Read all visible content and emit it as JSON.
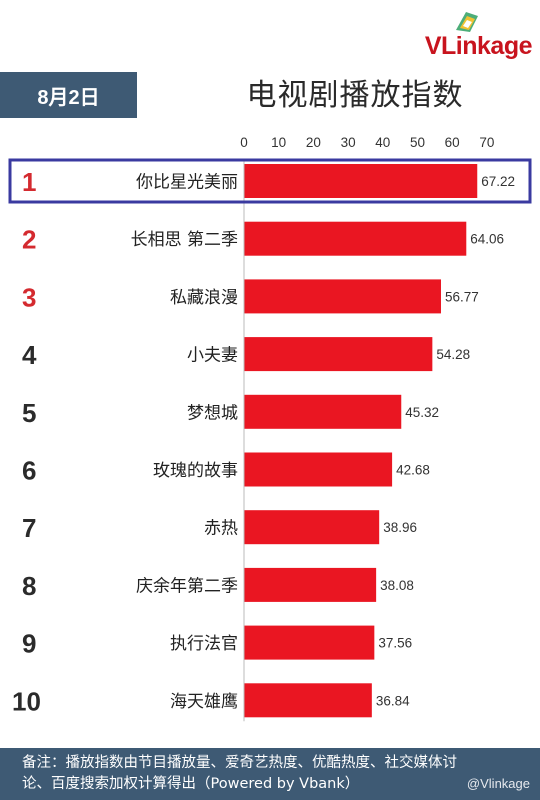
{
  "header": {
    "logo_text": "VLinkage",
    "date": "8月2日",
    "title": "电视剧播放指数"
  },
  "colors": {
    "bar": "#ea1622",
    "rank_highlight": "#d42a2f",
    "rank_default": "#2b2b2b",
    "header_bg": "#3e5a74",
    "highlight_box": "#3a3aa0"
  },
  "chart_data": {
    "type": "bar",
    "orientation": "horizontal",
    "xlim": [
      0,
      70
    ],
    "x_ticks": [
      0,
      10,
      20,
      30,
      40,
      50,
      60,
      70
    ],
    "categories": [
      "你比星光美丽",
      "长相思 第二季",
      "私藏浪漫",
      "小夫妻",
      "梦想城",
      "玫瑰的故事",
      "赤热",
      "庆余年第二季",
      "执行法官",
      "海天雄鹰"
    ],
    "ranks": [
      "1",
      "2",
      "3",
      "4",
      "5",
      "6",
      "7",
      "8",
      "9",
      "10"
    ],
    "values": [
      67.22,
      64.06,
      56.77,
      54.28,
      45.32,
      42.68,
      38.96,
      38.08,
      37.56,
      36.84
    ],
    "value_labels": [
      "67.22",
      "64.06",
      "56.77",
      "54.28",
      "45.32",
      "42.68",
      "38.96",
      "38.08",
      "37.56",
      "36.84"
    ],
    "highlighted_index": 0,
    "grid": false,
    "legend": "none"
  },
  "footer": {
    "note_line1": "备注：播放指数由节目播放量、爱奇艺热度、优酷热度、社交媒体讨",
    "note_line2": "论、百度搜索加权计算得出（Powered by Vbank）",
    "watermark": "@Vlinkage"
  }
}
